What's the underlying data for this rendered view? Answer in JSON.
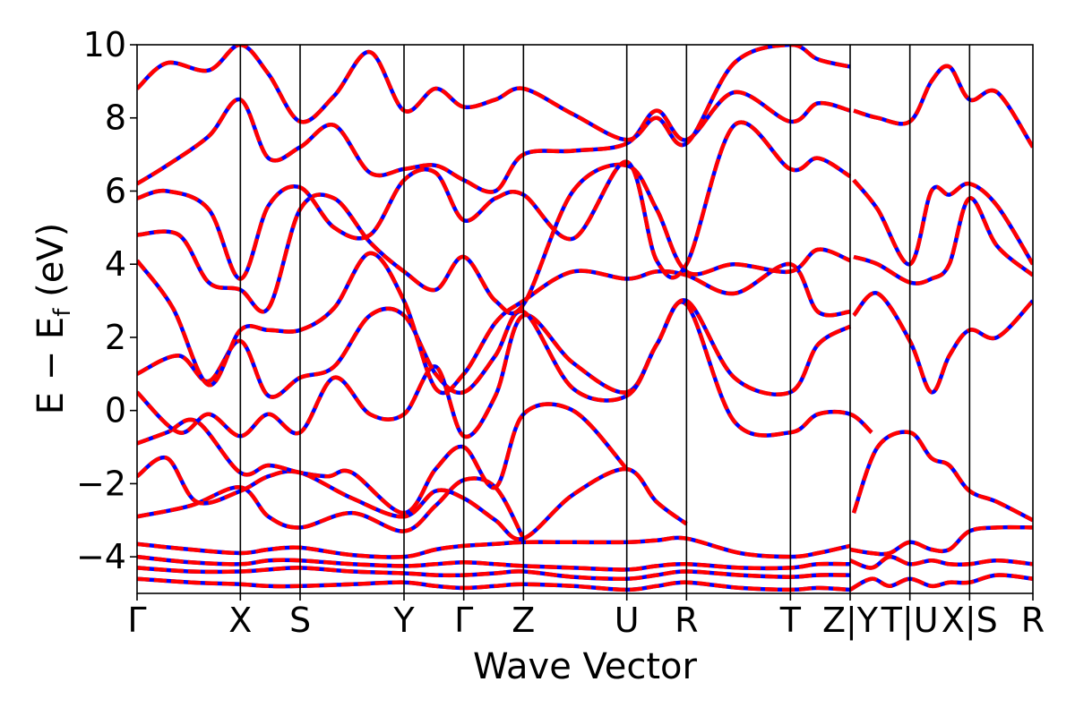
{
  "chart_data": {
    "type": "line",
    "xlabel": "Wave Vector",
    "ylabel": "E − E_f (eV)",
    "ylabel_main": "E − E",
    "ylabel_sub": "f",
    "ylabel_unit": " (eV)",
    "ylim": [
      -5,
      10
    ],
    "yticks": [
      -4,
      -2,
      0,
      2,
      4,
      6,
      8,
      10
    ],
    "ytick_labels": [
      "−4",
      "−2",
      "0",
      "2",
      "4",
      "6",
      "8",
      "10"
    ],
    "xlim": [
      0,
      15
    ],
    "kpoints": [
      {
        "pos": 0.0,
        "label": "Γ"
      },
      {
        "pos": 1.73,
        "label": "X"
      },
      {
        "pos": 2.73,
        "label": "S"
      },
      {
        "pos": 4.47,
        "label": "Y"
      },
      {
        "pos": 5.47,
        "label": "Γ"
      },
      {
        "pos": 6.47,
        "label": "Z"
      },
      {
        "pos": 8.2,
        "label": "U"
      },
      {
        "pos": 9.2,
        "label": "R"
      },
      {
        "pos": 10.94,
        "label": "T"
      },
      {
        "pos": 11.94,
        "label": "Z|Y"
      },
      {
        "pos": 12.94,
        "label": "T|U"
      },
      {
        "pos": 13.94,
        "label": "X|S"
      },
      {
        "pos": 15.0,
        "label": "R"
      }
    ],
    "tick_label_text": [
      "Γ",
      "X",
      "S",
      "Y",
      "Γ",
      "Z",
      "U",
      "R",
      "T",
      "Z",
      "|",
      "Y",
      "T",
      "|",
      "U",
      "X",
      "|",
      "S",
      "R"
    ],
    "series": [
      {
        "color": "#0000ff",
        "style": "solid"
      },
      {
        "color": "#ff0000",
        "style": "dashed"
      }
    ],
    "bands": [
      {
        "x": [
          0,
          0.9,
          1.73,
          2.2,
          2.73,
          3.6,
          4.47,
          5.0,
          5.47,
          6.0,
          6.47,
          7.3,
          8.2,
          8.7,
          9.2,
          10.1,
          10.94,
          11.4,
          11.94
        ],
        "y": [
          -4.6,
          -4.7,
          -4.75,
          -4.8,
          -4.8,
          -4.75,
          -4.7,
          -4.8,
          -4.85,
          -4.8,
          -4.75,
          -4.8,
          -4.9,
          -4.8,
          -4.7,
          -4.85,
          -4.9,
          -4.85,
          -4.9
        ]
      },
      {
        "x": [
          0,
          0.9,
          1.73,
          2.2,
          2.73,
          3.6,
          4.47,
          5.0,
          5.47,
          6.0,
          6.47,
          7.3,
          8.2,
          8.7,
          9.2,
          10.1,
          10.94,
          11.4,
          11.94
        ],
        "y": [
          -4.3,
          -4.4,
          -4.4,
          -4.35,
          -4.3,
          -4.4,
          -4.45,
          -4.5,
          -4.5,
          -4.45,
          -4.4,
          -4.55,
          -4.6,
          -4.5,
          -4.4,
          -4.5,
          -4.55,
          -4.5,
          -4.5
        ]
      },
      {
        "x": [
          0,
          0.9,
          1.73,
          2.2,
          2.73,
          3.6,
          4.47,
          5.0,
          5.47,
          6.0,
          6.47,
          7.3,
          8.2,
          8.7,
          9.2,
          10.1,
          10.94,
          11.4,
          11.94
        ],
        "y": [
          -4.0,
          -4.15,
          -4.2,
          -4.1,
          -4.1,
          -4.2,
          -4.25,
          -4.2,
          -4.15,
          -4.2,
          -4.25,
          -4.3,
          -4.35,
          -4.25,
          -4.2,
          -4.3,
          -4.3,
          -4.2,
          -4.2
        ]
      },
      {
        "x": [
          0,
          0.9,
          1.73,
          2.2,
          2.73,
          3.6,
          4.47,
          5.0,
          5.47,
          6.0,
          6.47,
          7.3,
          8.2,
          8.7,
          9.2,
          10.1,
          10.94,
          11.4,
          11.94
        ],
        "y": [
          -3.65,
          -3.8,
          -3.9,
          -3.8,
          -3.75,
          -3.95,
          -4.0,
          -3.8,
          -3.7,
          -3.65,
          -3.6,
          -3.6,
          -3.6,
          -3.55,
          -3.5,
          -3.9,
          -4.0,
          -3.9,
          -3.7
        ]
      },
      {
        "x": [
          0,
          0.9,
          1.73,
          2.2,
          2.73,
          3.6,
          4.47,
          5.0,
          5.47,
          6.0,
          6.47
        ],
        "y": [
          -2.9,
          -2.6,
          -2.1,
          -2.9,
          -3.2,
          -2.8,
          -3.3,
          -2.6,
          -1.9,
          -2.1,
          -3.5
        ]
      },
      {
        "x": [
          0,
          0.5,
          1.0,
          1.73,
          2.2,
          2.73,
          3.6,
          4.47,
          5.0,
          5.47,
          6.0,
          6.47,
          7.3,
          8.2,
          8.7,
          9.2
        ],
        "y": [
          -1.8,
          -1.3,
          -2.5,
          -2.2,
          -1.8,
          -1.7,
          -2.4,
          -2.9,
          -2.2,
          -2.4,
          -3.0,
          -3.5,
          -2.3,
          -1.6,
          -2.5,
          -3.1
        ]
      },
      {
        "x": [
          0,
          0.5,
          1.0,
          1.73,
          2.2,
          2.73,
          3.2,
          3.6,
          4.47,
          5.0,
          5.47,
          6.0,
          6.47,
          7.3,
          8.2
        ],
        "y": [
          -0.9,
          -0.6,
          -0.3,
          -1.7,
          -1.5,
          -1.7,
          -1.8,
          -1.7,
          -2.8,
          -1.6,
          -1.0,
          -2.1,
          -0.1,
          0.0,
          -1.6
        ]
      },
      {
        "x": [
          0,
          0.7,
          1.2,
          1.73,
          2.2,
          2.73,
          3.3,
          3.9,
          4.47,
          5.0,
          5.47,
          6.0,
          6.47,
          7.3,
          8.2,
          8.7,
          9.2,
          10.0,
          10.94,
          11.4,
          11.94,
          12.3
        ],
        "y": [
          0.5,
          -0.6,
          -0.1,
          -0.7,
          -0.1,
          -0.6,
          0.9,
          -0.1,
          -0.1,
          1.2,
          -0.7,
          0.4,
          2.6,
          1.3,
          0.5,
          1.8,
          2.9,
          -0.3,
          -0.6,
          -0.1,
          -0.1,
          -0.6
        ]
      },
      {
        "x": [
          0,
          0.7,
          1.2,
          1.73,
          2.2,
          2.73,
          3.3,
          3.9,
          4.47,
          5.0,
          5.47,
          6.0,
          6.47,
          7.3,
          8.2,
          8.7,
          9.2,
          10.0,
          10.94,
          11.4,
          11.94
        ],
        "y": [
          1.0,
          1.5,
          0.8,
          1.9,
          0.4,
          0.9,
          1.2,
          2.6,
          2.6,
          1.0,
          0.5,
          1.5,
          2.7,
          0.6,
          0.4,
          1.8,
          3.0,
          0.9,
          0.5,
          1.8,
          2.3
        ]
      },
      {
        "x": [
          0,
          0.6,
          1.2,
          1.73,
          2.2,
          2.73,
          3.3,
          3.9,
          4.47,
          5.0,
          5.47,
          6.0,
          6.47,
          7.3,
          8.2,
          8.7,
          9.2,
          10.0,
          10.94,
          11.4,
          11.94
        ],
        "y": [
          4.1,
          2.8,
          0.7,
          2.2,
          2.2,
          2.2,
          2.8,
          4.3,
          3.0,
          0.6,
          1.0,
          2.4,
          3.0,
          3.8,
          3.6,
          3.8,
          3.7,
          3.2,
          4.0,
          2.7,
          2.7
        ]
      },
      {
        "x": [
          0,
          0.7,
          1.2,
          1.73,
          2.2,
          2.73,
          3.3,
          3.9,
          4.47,
          5.0,
          5.47,
          6.0,
          6.47,
          7.3,
          8.2,
          8.7,
          9.2,
          10.0,
          10.94,
          11.4,
          11.94
        ],
        "y": [
          4.8,
          4.8,
          3.5,
          3.3,
          2.8,
          5.5,
          5.8,
          4.6,
          3.8,
          3.3,
          4.2,
          3.0,
          2.9,
          6.0,
          6.7,
          5.5,
          3.8,
          4.0,
          3.8,
          4.4,
          4.1
        ]
      },
      {
        "x": [
          0,
          0.5,
          1.2,
          1.73,
          2.2,
          2.73,
          3.3,
          3.9,
          4.47,
          5.0,
          5.47,
          6.0,
          6.47,
          7.3,
          8.2,
          8.7,
          9.2,
          10.0,
          10.94,
          11.4,
          11.94
        ],
        "y": [
          5.8,
          6.0,
          5.5,
          3.6,
          5.6,
          6.1,
          5.0,
          4.8,
          6.3,
          6.5,
          5.2,
          5.8,
          5.9,
          4.7,
          6.8,
          4.1,
          4.0,
          7.8,
          6.6,
          6.9,
          6.4
        ]
      },
      {
        "x": [
          0,
          0.5,
          1.2,
          1.73,
          2.2,
          2.73,
          3.3,
          3.9,
          4.47,
          5.0,
          5.47,
          6.0,
          6.47,
          7.3,
          8.2,
          8.7,
          9.2,
          10.0,
          10.94,
          11.4,
          11.94
        ],
        "y": [
          6.2,
          6.7,
          7.5,
          8.5,
          6.9,
          7.2,
          7.8,
          6.5,
          6.6,
          6.7,
          6.3,
          6.0,
          7.0,
          7.1,
          7.3,
          8.2,
          7.4,
          8.7,
          7.9,
          8.4,
          8.2
        ]
      },
      {
        "x": [
          0,
          0.5,
          1.2,
          1.73,
          2.2,
          2.73,
          3.3,
          3.9,
          4.47,
          5.0,
          5.47,
          6.0,
          6.47,
          7.3,
          8.2,
          8.7,
          9.2,
          10.0,
          10.94,
          11.4,
          11.94
        ],
        "y": [
          8.8,
          9.5,
          9.3,
          10.0,
          9.2,
          7.9,
          8.6,
          9.8,
          8.2,
          8.8,
          8.3,
          8.5,
          8.8,
          8.1,
          7.4,
          8.0,
          7.3,
          9.5,
          10.0,
          9.6,
          9.4
        ]
      },
      {
        "x": [
          11.94,
          12.3,
          12.6,
          12.94,
          13.3,
          13.6,
          13.94,
          14.4,
          15.0
        ],
        "y": [
          -4.9,
          -4.6,
          -4.8,
          -4.6,
          -4.8,
          -4.7,
          -4.7,
          -4.5,
          -4.6
        ]
      },
      {
        "x": [
          11.94,
          12.3,
          12.6,
          12.94,
          13.3,
          13.6,
          13.94,
          14.4,
          15.0
        ],
        "y": [
          -4.1,
          -4.3,
          -4.0,
          -4.2,
          -4.1,
          -4.2,
          -4.2,
          -4.1,
          -4.2
        ]
      },
      {
        "x": [
          11.94,
          12.3,
          12.6,
          12.94,
          13.3,
          13.6,
          13.94,
          14.4,
          15.0
        ],
        "y": [
          -3.8,
          -3.9,
          -3.9,
          -3.6,
          -3.8,
          -3.8,
          -3.3,
          -3.2,
          -3.2
        ]
      },
      {
        "x": [
          12.0,
          12.4,
          12.94,
          13.3,
          13.6,
          13.94,
          14.4,
          15.0
        ],
        "y": [
          -2.8,
          -1.0,
          -0.6,
          -1.3,
          -1.5,
          -2.2,
          -2.5,
          -3.0
        ]
      },
      {
        "x": [
          12.0,
          12.4,
          12.94,
          13.3,
          13.6,
          13.94,
          14.4,
          15.0
        ],
        "y": [
          2.6,
          3.2,
          1.9,
          0.5,
          1.5,
          2.2,
          2.0,
          3.0
        ]
      },
      {
        "x": [
          12.0,
          12.4,
          12.94,
          13.3,
          13.6,
          13.94,
          14.4,
          15.0
        ],
        "y": [
          4.2,
          4.0,
          3.5,
          3.6,
          4.0,
          5.8,
          4.5,
          3.7
        ]
      },
      {
        "x": [
          12.0,
          12.4,
          12.94,
          13.3,
          13.6,
          13.94,
          14.4,
          15.0
        ],
        "y": [
          6.3,
          5.5,
          4.0,
          6.0,
          5.9,
          6.2,
          5.6,
          4.0
        ]
      },
      {
        "x": [
          12.0,
          12.4,
          12.94,
          13.3,
          13.6,
          13.94,
          14.4,
          15.0
        ],
        "y": [
          8.2,
          8.0,
          7.9,
          9.0,
          9.4,
          8.5,
          8.7,
          7.2
        ]
      }
    ]
  }
}
